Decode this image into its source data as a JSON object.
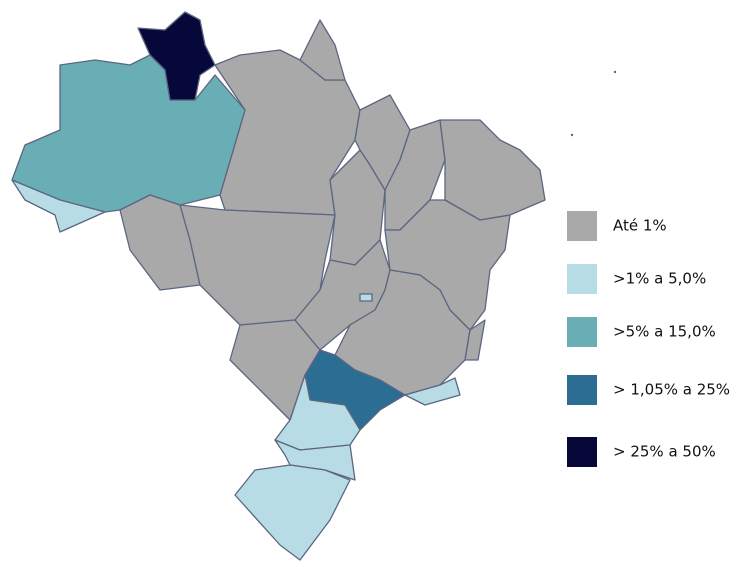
{
  "legend": {
    "entries": [
      {
        "label": "Até 1%",
        "color": "#a9a9a9"
      },
      {
        "label": ">1% a 5,0%",
        "color": "#b8dce6"
      },
      {
        "label": ">5% a 15,0%",
        "color": "#6aaeb5"
      },
      {
        "label": "> 1,05% a 25%",
        "color": "#2c6e93"
      },
      {
        "label": "> 25% a 50%",
        "color": "#07083a"
      }
    ]
  }
}
